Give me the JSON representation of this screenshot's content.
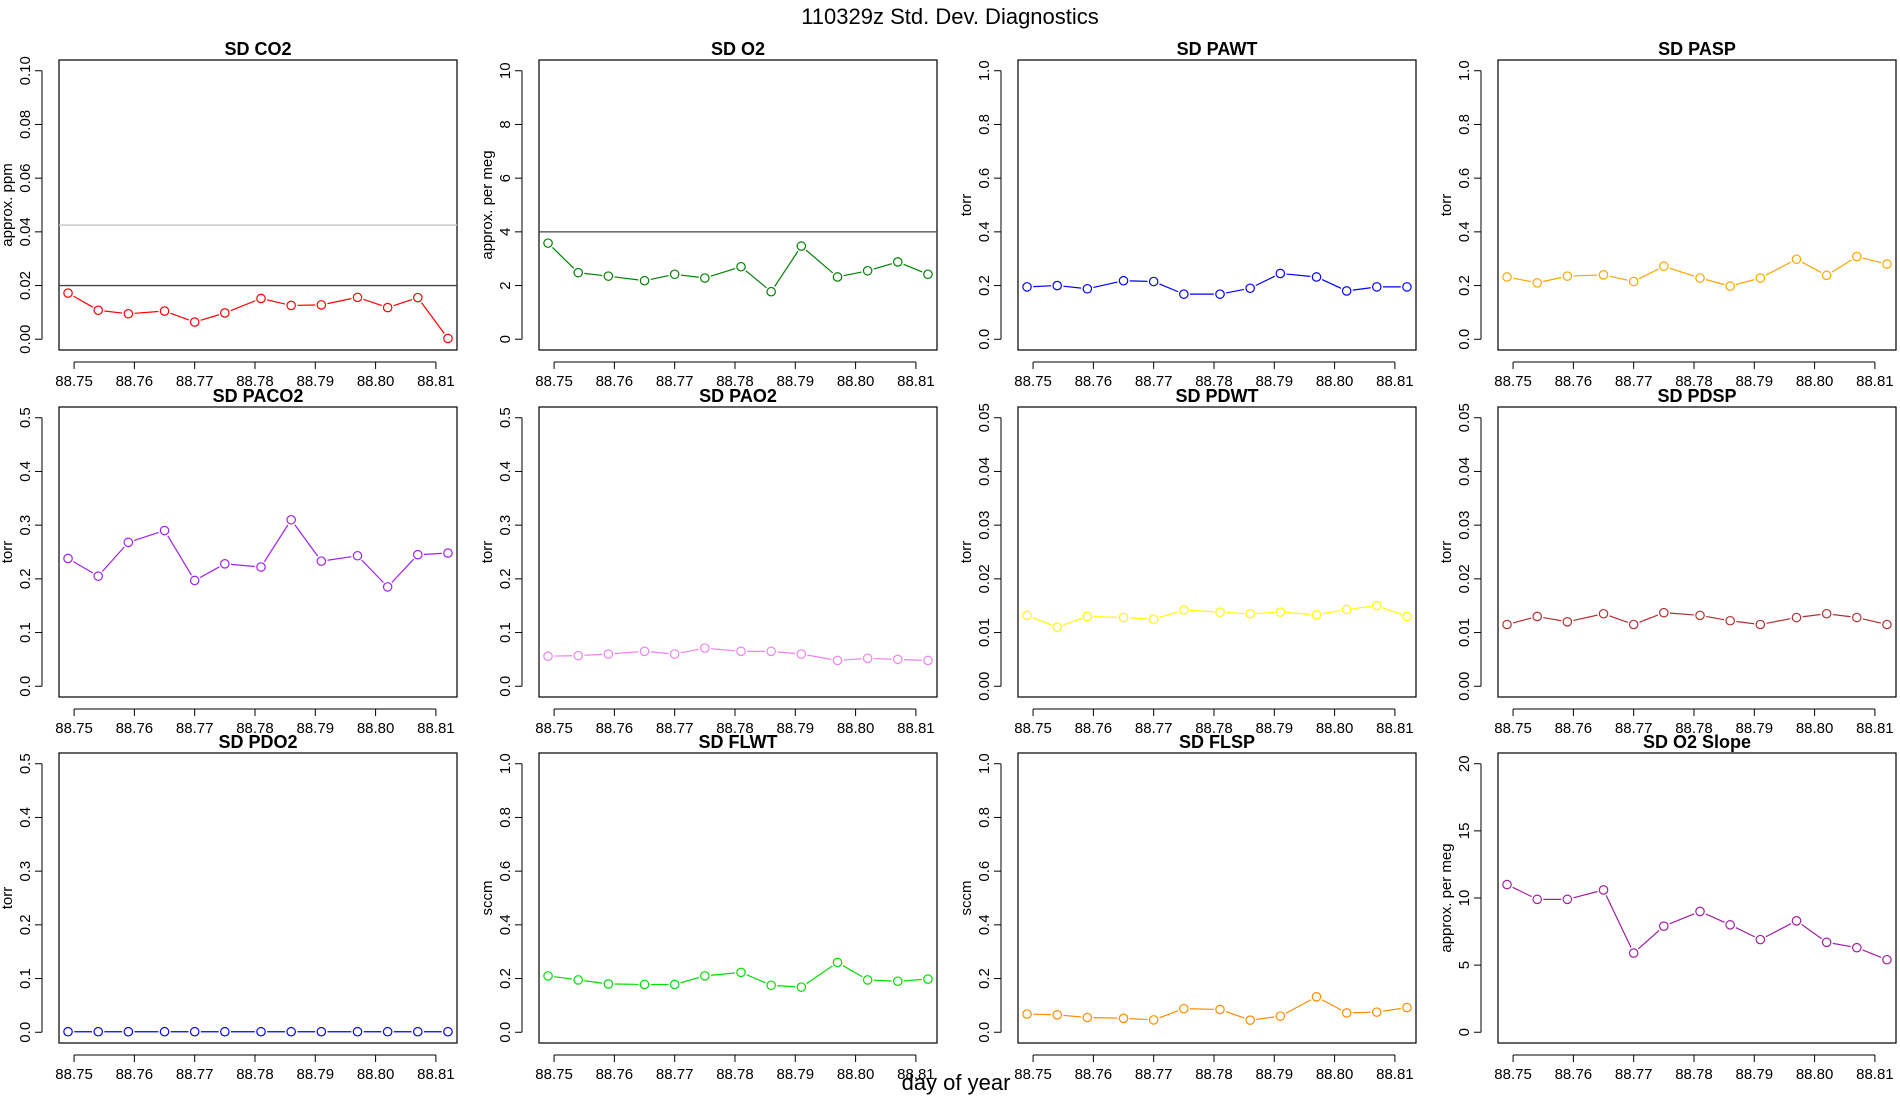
{
  "figure": {
    "title": "110329z   Std. Dev. Diagnostics",
    "xlabel": "day of year"
  },
  "chart_data": [
    {
      "type": "line",
      "title": "SD CO2",
      "ylabel": "approx. ppm",
      "ylim": [
        0,
        0.1
      ],
      "yticks": [
        0,
        0.02,
        0.04,
        0.06,
        0.08,
        0.1
      ],
      "ydecimals": 2,
      "color": "#ff0000",
      "refline": 0.02,
      "refline2": 0.0425,
      "x": [
        88.749,
        88.754,
        88.759,
        88.765,
        88.77,
        88.775,
        88.781,
        88.786,
        88.791,
        88.797,
        88.802,
        88.807,
        88.812
      ],
      "values": [
        0.0172,
        0.0108,
        0.0095,
        0.0105,
        0.0064,
        0.0098,
        0.0152,
        0.0126,
        0.0128,
        0.0156,
        0.0118,
        0.0155,
        0.0003
      ]
    },
    {
      "type": "line",
      "title": "SD O2",
      "ylabel": "approx. per meg",
      "ylim": [
        0,
        10
      ],
      "yticks": [
        0,
        2,
        4,
        6,
        8,
        10
      ],
      "ydecimals": 0,
      "color": "#008000",
      "refline": 4,
      "x": [
        88.749,
        88.754,
        88.759,
        88.765,
        88.77,
        88.775,
        88.781,
        88.786,
        88.791,
        88.797,
        88.802,
        88.807,
        88.812
      ],
      "values": [
        3.58,
        2.48,
        2.35,
        2.18,
        2.42,
        2.28,
        2.7,
        1.77,
        3.47,
        2.32,
        2.55,
        2.88,
        2.42
      ]
    },
    {
      "type": "line",
      "title": "SD PAWT",
      "ylabel": "torr",
      "ylim": [
        0,
        1
      ],
      "yticks": [
        0,
        0.2,
        0.4,
        0.6,
        0.8,
        1.0
      ],
      "ydecimals": 1,
      "color": "#0000ff",
      "x": [
        88.749,
        88.754,
        88.759,
        88.765,
        88.77,
        88.775,
        88.781,
        88.786,
        88.791,
        88.797,
        88.802,
        88.807,
        88.812
      ],
      "values": [
        0.195,
        0.2,
        0.188,
        0.218,
        0.215,
        0.168,
        0.168,
        0.19,
        0.245,
        0.232,
        0.18,
        0.195,
        0.195
      ]
    },
    {
      "type": "line",
      "title": "SD PASP",
      "ylabel": "torr",
      "ylim": [
        0,
        1
      ],
      "yticks": [
        0,
        0.2,
        0.4,
        0.6,
        0.8,
        1.0
      ],
      "ydecimals": 1,
      "color": "#ffa500",
      "x": [
        88.749,
        88.754,
        88.759,
        88.765,
        88.77,
        88.775,
        88.781,
        88.786,
        88.791,
        88.797,
        88.802,
        88.807,
        88.812
      ],
      "values": [
        0.232,
        0.21,
        0.235,
        0.24,
        0.215,
        0.272,
        0.228,
        0.198,
        0.228,
        0.298,
        0.238,
        0.308,
        0.28
      ]
    },
    {
      "type": "line",
      "title": "SD PACO2",
      "ylabel": "torr",
      "ylim": [
        0,
        0.5
      ],
      "yticks": [
        0,
        0.1,
        0.2,
        0.3,
        0.4,
        0.5
      ],
      "ydecimals": 1,
      "color": "#a020f0",
      "x": [
        88.749,
        88.754,
        88.759,
        88.765,
        88.77,
        88.775,
        88.781,
        88.786,
        88.791,
        88.797,
        88.802,
        88.807,
        88.812
      ],
      "values": [
        0.238,
        0.205,
        0.268,
        0.29,
        0.197,
        0.228,
        0.222,
        0.31,
        0.233,
        0.243,
        0.185,
        0.245,
        0.248
      ]
    },
    {
      "type": "line",
      "title": "SD PAO2",
      "ylabel": "torr",
      "ylim": [
        0,
        0.5
      ],
      "yticks": [
        0,
        0.1,
        0.2,
        0.3,
        0.4,
        0.5
      ],
      "ydecimals": 1,
      "color": "#ee82ee",
      "x": [
        88.749,
        88.754,
        88.759,
        88.765,
        88.77,
        88.775,
        88.781,
        88.786,
        88.791,
        88.797,
        88.802,
        88.807,
        88.812
      ],
      "values": [
        0.056,
        0.057,
        0.06,
        0.065,
        0.06,
        0.071,
        0.065,
        0.065,
        0.06,
        0.048,
        0.052,
        0.05,
        0.048
      ]
    },
    {
      "type": "line",
      "title": "SD PDWT",
      "ylabel": "torr",
      "ylim": [
        0,
        0.05
      ],
      "yticks": [
        0,
        0.01,
        0.02,
        0.03,
        0.04,
        0.05
      ],
      "ydecimals": 2,
      "color": "#ffff00",
      "x": [
        88.749,
        88.754,
        88.759,
        88.765,
        88.77,
        88.775,
        88.781,
        88.786,
        88.791,
        88.797,
        88.802,
        88.807,
        88.812
      ],
      "values": [
        0.0132,
        0.011,
        0.013,
        0.0128,
        0.0125,
        0.0142,
        0.0138,
        0.0135,
        0.0138,
        0.0133,
        0.0143,
        0.015,
        0.013
      ]
    },
    {
      "type": "line",
      "title": "SD PDSP",
      "ylabel": "torr",
      "ylim": [
        0,
        0.05
      ],
      "yticks": [
        0,
        0.01,
        0.02,
        0.03,
        0.04,
        0.05
      ],
      "ydecimals": 2,
      "color": "#b03030",
      "x": [
        88.749,
        88.754,
        88.759,
        88.765,
        88.77,
        88.775,
        88.781,
        88.786,
        88.791,
        88.797,
        88.802,
        88.807,
        88.812
      ],
      "values": [
        0.0115,
        0.013,
        0.012,
        0.0135,
        0.0115,
        0.0137,
        0.0132,
        0.0122,
        0.0115,
        0.0128,
        0.0135,
        0.0128,
        0.0115
      ]
    },
    {
      "type": "line",
      "title": "SD PDO2",
      "ylabel": "torr",
      "ylim": [
        0,
        0.5
      ],
      "yticks": [
        0,
        0.1,
        0.2,
        0.3,
        0.4,
        0.5
      ],
      "ydecimals": 1,
      "color": "#0000ff",
      "x": [
        88.749,
        88.754,
        88.759,
        88.765,
        88.77,
        88.775,
        88.781,
        88.786,
        88.791,
        88.797,
        88.802,
        88.807,
        88.812
      ],
      "values": [
        0.001,
        0.001,
        0.001,
        0.001,
        0.001,
        0.001,
        0.001,
        0.001,
        0.001,
        0.001,
        0.001,
        0.001,
        0.001
      ]
    },
    {
      "type": "line",
      "title": "SD FLWT",
      "ylabel": "sccm",
      "ylim": [
        0,
        1
      ],
      "yticks": [
        0,
        0.2,
        0.4,
        0.6,
        0.8,
        1.0
      ],
      "ydecimals": 1,
      "color": "#00dd00",
      "x": [
        88.749,
        88.754,
        88.759,
        88.765,
        88.77,
        88.775,
        88.781,
        88.786,
        88.791,
        88.797,
        88.802,
        88.807,
        88.812
      ],
      "values": [
        0.21,
        0.195,
        0.18,
        0.178,
        0.178,
        0.21,
        0.223,
        0.175,
        0.168,
        0.26,
        0.195,
        0.19,
        0.198
      ]
    },
    {
      "type": "line",
      "title": "SD FLSP",
      "ylabel": "sccm",
      "ylim": [
        0,
        1
      ],
      "yticks": [
        0,
        0.2,
        0.4,
        0.6,
        0.8,
        1.0
      ],
      "ydecimals": 1,
      "color": "#ff8c00",
      "x": [
        88.749,
        88.754,
        88.759,
        88.765,
        88.77,
        88.775,
        88.781,
        88.786,
        88.791,
        88.797,
        88.802,
        88.807,
        88.812
      ],
      "values": [
        0.068,
        0.065,
        0.055,
        0.052,
        0.046,
        0.088,
        0.085,
        0.045,
        0.06,
        0.132,
        0.072,
        0.075,
        0.092
      ]
    },
    {
      "type": "line",
      "title": "SD O2 Slope",
      "ylabel": "approx. per meg",
      "ylim": [
        0,
        20
      ],
      "yticks": [
        0,
        5,
        10,
        15,
        20
      ],
      "ydecimals": 0,
      "color": "#a020a0",
      "x": [
        88.749,
        88.754,
        88.759,
        88.765,
        88.77,
        88.775,
        88.781,
        88.786,
        88.791,
        88.797,
        88.802,
        88.807,
        88.812
      ],
      "values": [
        11.0,
        9.9,
        9.9,
        10.6,
        5.9,
        7.9,
        9.0,
        8.0,
        6.9,
        8.3,
        6.7,
        6.3,
        5.4
      ]
    }
  ],
  "xaxis": {
    "ticks": [
      88.75,
      88.76,
      88.77,
      88.78,
      88.79,
      88.8,
      88.81
    ],
    "range": [
      88.7475,
      88.8135
    ]
  }
}
